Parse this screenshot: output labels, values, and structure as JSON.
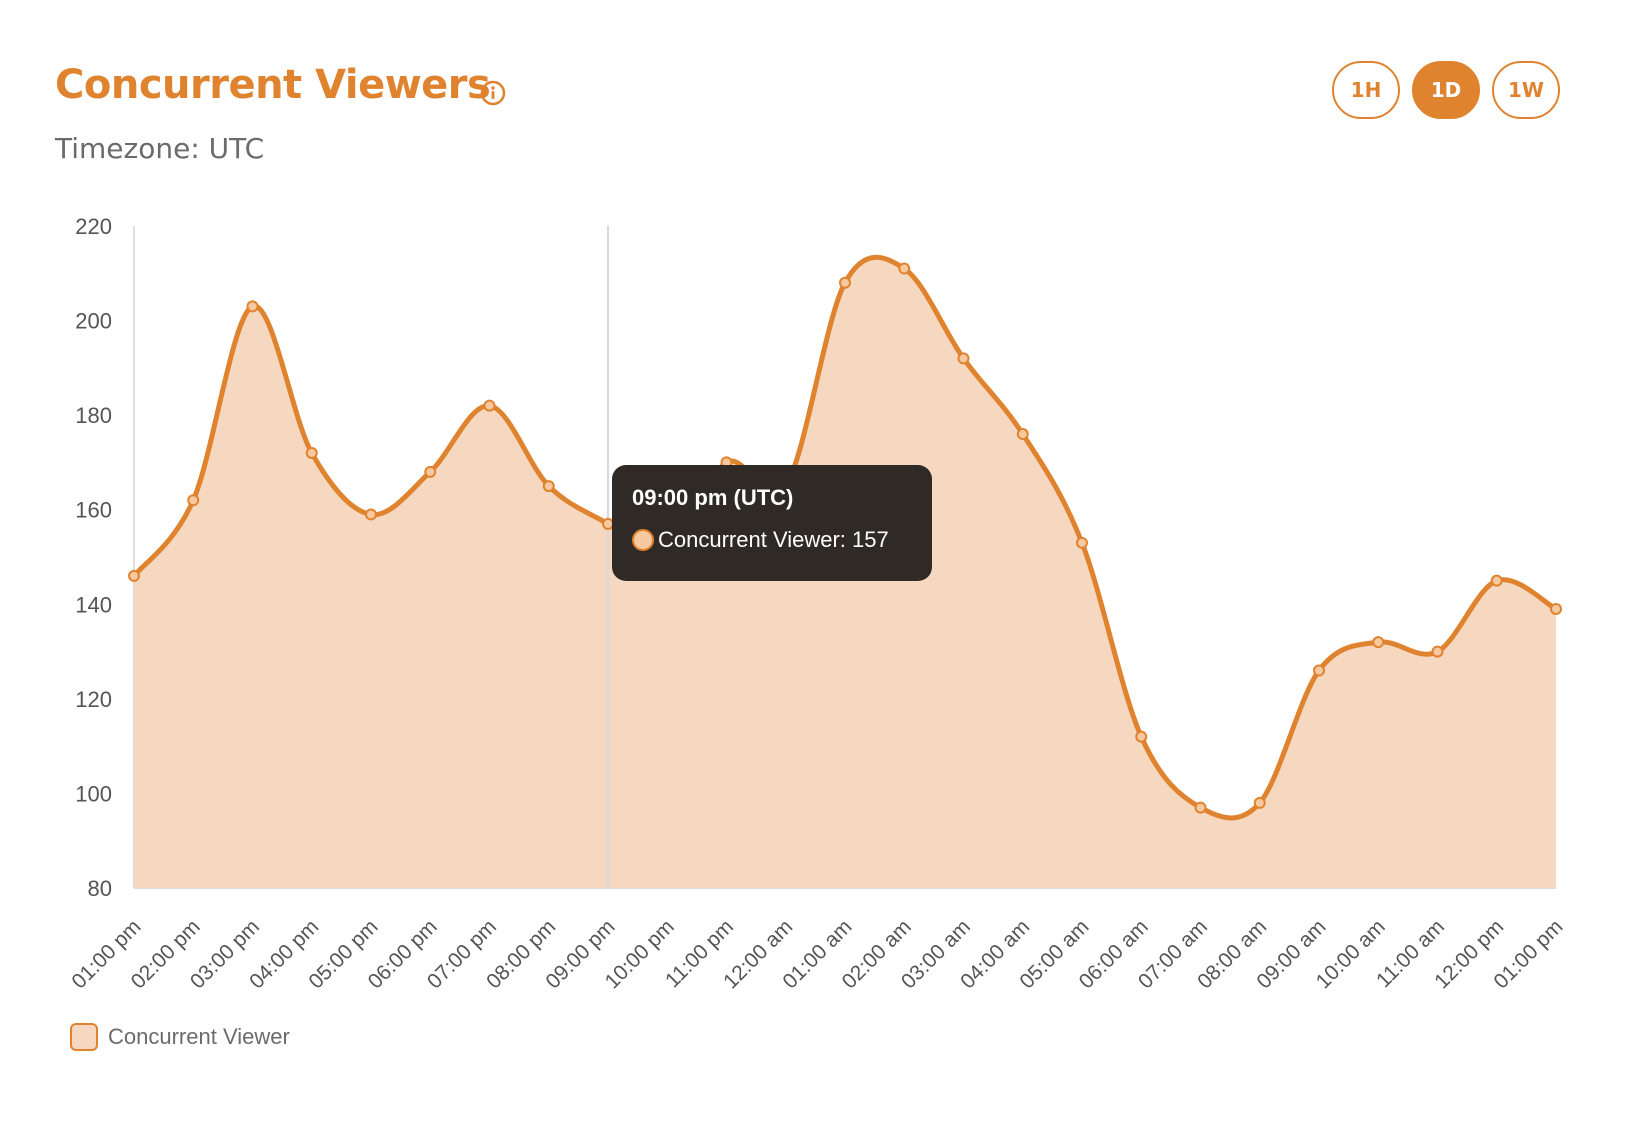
{
  "header": {
    "title": "Concurrent Viewers",
    "subtitle": "Timezone: UTC",
    "info_icon": "info-circle-icon"
  },
  "range_buttons": [
    {
      "label": "1H",
      "active": false
    },
    {
      "label": "1D",
      "active": true
    },
    {
      "label": "1W",
      "active": false
    }
  ],
  "colors": {
    "accent": "#e0832f",
    "fill": "#f6d8c0",
    "tooltip_bg": "#2f2a25"
  },
  "tooltip": {
    "title": "09:00 pm (UTC)",
    "label": "Concurrent Viewer: 157"
  },
  "legend": {
    "label": "Concurrent Viewer"
  },
  "chart_data": {
    "type": "area",
    "categories": [
      "01:00 pm",
      "02:00 pm",
      "03:00 pm",
      "04:00 pm",
      "05:00 pm",
      "06:00 pm",
      "07:00 pm",
      "08:00 pm",
      "09:00 pm",
      "10:00 pm",
      "11:00 pm",
      "12:00 am",
      "01:00 am",
      "02:00 am",
      "03:00 am",
      "04:00 am",
      "05:00 am",
      "06:00 am",
      "07:00 am",
      "08:00 am",
      "09:00 am",
      "10:00 am",
      "11:00 am",
      "12:00 pm",
      "01:00 pm"
    ],
    "series": [
      {
        "name": "Concurrent Viewer",
        "values": [
          146,
          162,
          203,
          172,
          159,
          168,
          182,
          165,
          157,
          150,
          170,
          165,
          208,
          211,
          192,
          176,
          153,
          112,
          97,
          98,
          126,
          132,
          130,
          145,
          139
        ]
      }
    ],
    "yticks": [
      80,
      100,
      120,
      140,
      160,
      180,
      200,
      220
    ],
    "ylim": [
      80,
      220
    ],
    "highlight_index": 8,
    "grid": false,
    "legend_position": "bottom-left"
  }
}
